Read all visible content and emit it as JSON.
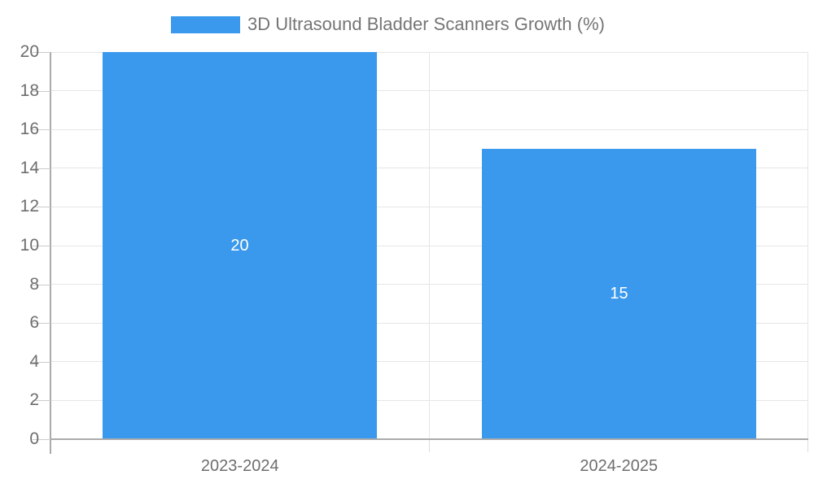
{
  "legend": {
    "label": "3D Ultrasound Bladder Scanners Growth (%)"
  },
  "chart_data": {
    "type": "bar",
    "title": "",
    "xlabel": "",
    "ylabel": "",
    "categories": [
      "2023-2024",
      "2024-2025"
    ],
    "series": [
      {
        "name": "3D Ultrasound Bladder Scanners Growth (%)",
        "values": [
          20,
          15
        ],
        "value_labels": [
          "20",
          "15"
        ]
      }
    ],
    "ylim": [
      0,
      20
    ],
    "yticks": [
      0,
      2,
      4,
      6,
      8,
      10,
      12,
      14,
      16,
      18,
      20
    ],
    "grid": true,
    "legend_position": "top-center",
    "colors": {
      "bar": "#3a99ec",
      "value_label": "#ffffff",
      "gridline": "#e6e6e6",
      "axis": "#ababab",
      "tick": "#cccccc",
      "tick_minor": "#dddddd",
      "text": "#6e6e6e",
      "legend_text": "#757575"
    }
  }
}
